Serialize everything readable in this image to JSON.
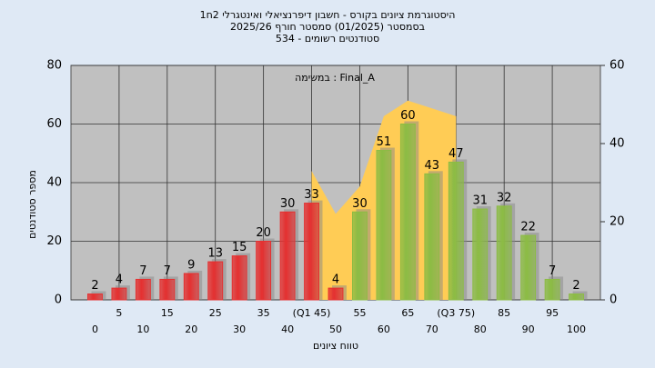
{
  "chart_data": {
    "type": "bar",
    "title": "היסטוגרמת ציונים בקורס - חשבון דיפרנציאלי ואינטגרלי 2ח1",
    "subtitle": "בסמסטר  (01/2025)  סמסטר חורף  2025/26",
    "subtitle2": "534 - סטודנטים רשומים",
    "annotation": "במשימה : Final_A",
    "y_label": "מספר סטודנטים",
    "x_label": "טווח ציונים",
    "categories": [
      "0",
      "5",
      "10",
      "15",
      "20",
      "25",
      "30",
      "35",
      "40",
      "(Q1 45)",
      "50",
      "55",
      "60",
      "65",
      "70",
      "(Q3 75)",
      "80",
      "85",
      "90",
      "95",
      "100"
    ],
    "values": [
      2,
      4,
      7,
      7,
      9,
      13,
      15,
      20,
      30,
      33,
      4,
      30,
      51,
      60,
      43,
      47,
      31,
      32,
      22,
      7,
      2
    ],
    "colors": [
      "#e53030",
      "#e53030",
      "#e53030",
      "#e53030",
      "#e53030",
      "#e53030",
      "#e53030",
      "#e53030",
      "#e53030",
      "#e53030",
      "#e53030",
      "#8cbc44",
      "#8cbc44",
      "#8cbc44",
      "#8cbc44",
      "#8cbc44",
      "#8cbc44",
      "#8cbc44",
      "#8cbc44",
      "#8cbc44",
      "#8cbc44"
    ],
    "area": {
      "axis": "y2",
      "color": "#ffcc55",
      "values": [
        null,
        null,
        null,
        null,
        null,
        null,
        null,
        null,
        null,
        33,
        22,
        29,
        47,
        51,
        49,
        47,
        null,
        null,
        null,
        null,
        null
      ]
    },
    "ylim": [
      0,
      80
    ],
    "yticks": [
      0,
      20,
      40,
      60,
      80
    ],
    "y2lim": [
      0,
      60
    ],
    "y2ticks": [
      0,
      20,
      40,
      60
    ],
    "grid": true
  }
}
